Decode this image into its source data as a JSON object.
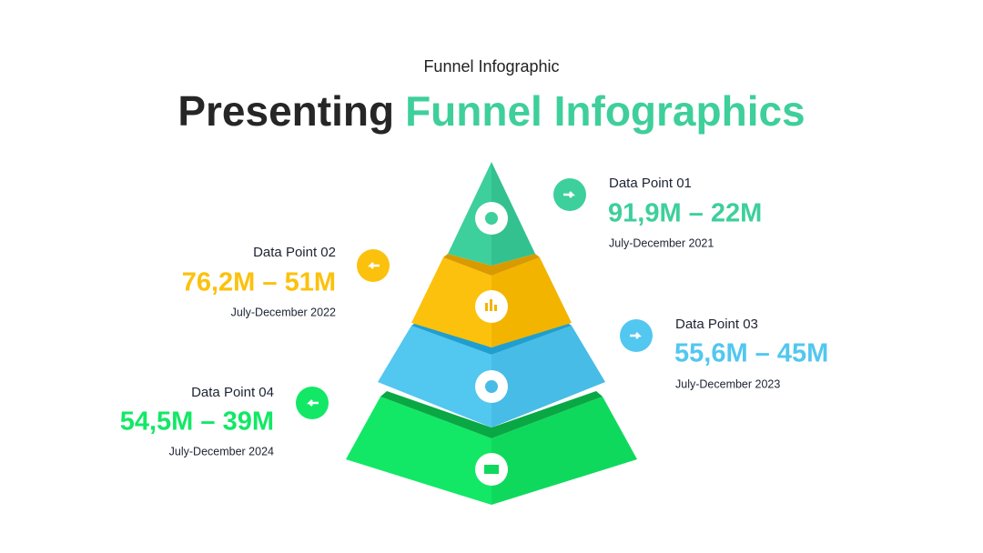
{
  "header": {
    "subtitle": "Funnel Infographic",
    "title_main": "Presenting",
    "title_accent": "Funnel Infographics"
  },
  "items": [
    {
      "label": "Data Point 01",
      "range": "91,9M – 22M",
      "period": "July-December 2021"
    },
    {
      "label": "Data Point 02",
      "range": "76,2M – 51M",
      "period": "July-December 2022"
    },
    {
      "label": "Data Point 03",
      "range": "55,6M – 45M",
      "period": "July-December 2023"
    },
    {
      "label": "Data Point 04",
      "range": "54,5M – 39M",
      "period": "July-December 2024"
    }
  ]
}
